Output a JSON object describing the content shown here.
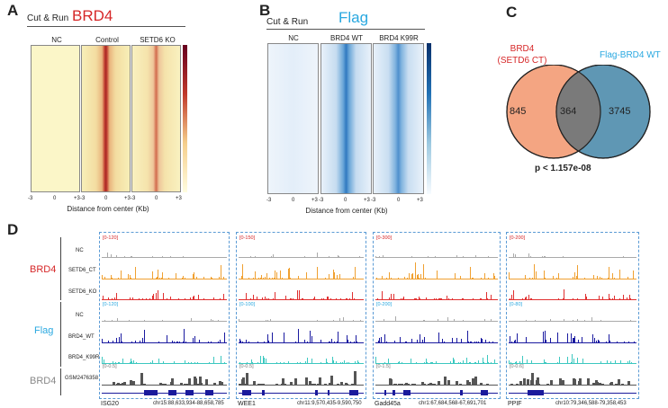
{
  "panelA": {
    "letter": "A",
    "method": "Cut & Run",
    "target": "BRD4",
    "heatmaps": [
      {
        "label": "NC"
      },
      {
        "label": "Control"
      },
      {
        "label": "SETD6 KO"
      }
    ],
    "ticks": [
      "-3",
      "0",
      "+3",
      "-3",
      "0",
      "+3",
      "-3",
      "0",
      "+3"
    ],
    "xlabel": "Distance from center (Kb)"
  },
  "panelB": {
    "letter": "B",
    "method": "Cut & Run",
    "target": "Flag",
    "heatmaps": [
      {
        "label": "NC"
      },
      {
        "label": "BRD4 WT"
      },
      {
        "label": "BRD4 K99R"
      }
    ],
    "ticks": [
      "-3",
      "0",
      "+3",
      "-3",
      "0",
      "+3",
      "-3",
      "0",
      "+3"
    ],
    "xlabel": "Distance from center (Kb)"
  },
  "panelC": {
    "letter": "C",
    "left_set_line1": "BRD4",
    "left_set_line2": "(SETD6 CT)",
    "right_set": "Flag-BRD4 WT",
    "left_only": "845",
    "overlap": "364",
    "right_only": "3745",
    "pvalue": "p < 1.157e-08",
    "colors": {
      "left": "#f4a582",
      "right": "#5f97b4",
      "overlap": "#7a7a7a"
    }
  },
  "panelD": {
    "letter": "D",
    "groups": [
      "BRD4",
      "Flag",
      "BRD4"
    ],
    "row_labels": [
      "NC",
      "SETD6_CT",
      "SETD6_KO",
      "NC",
      "BRD4_WT",
      "BRD4_K99R",
      "GSM2476358"
    ],
    "row_colors": [
      "#aaaaaa",
      "#f0a030",
      "#e03030",
      "#aaaaaa",
      "#1a1aa0",
      "#3cc8c0",
      "#555555"
    ],
    "loci": [
      {
        "gene": "ISG20",
        "coord": "chr15:88,633,934-88,658,785",
        "ranges": [
          "[0-120]",
          "[0-120]",
          "[0-0.5]"
        ]
      },
      {
        "gene": "WEE1",
        "coord": "chr11:9,570,435-9,590,750",
        "ranges": [
          "[0-150]",
          "[0-100]",
          "[0-0.5]"
        ]
      },
      {
        "gene": "Gadd45a",
        "coord": "chr1:67,684,568-67,691,701",
        "ranges": [
          "[0-300]",
          "[0-200]",
          "[0-1.5]"
        ]
      },
      {
        "gene": "PPIF",
        "coord": "chr10:79,346,588-79,358,453",
        "ranges": [
          "[0-200]",
          "[0-80]",
          "[0-0.6]"
        ]
      }
    ]
  }
}
